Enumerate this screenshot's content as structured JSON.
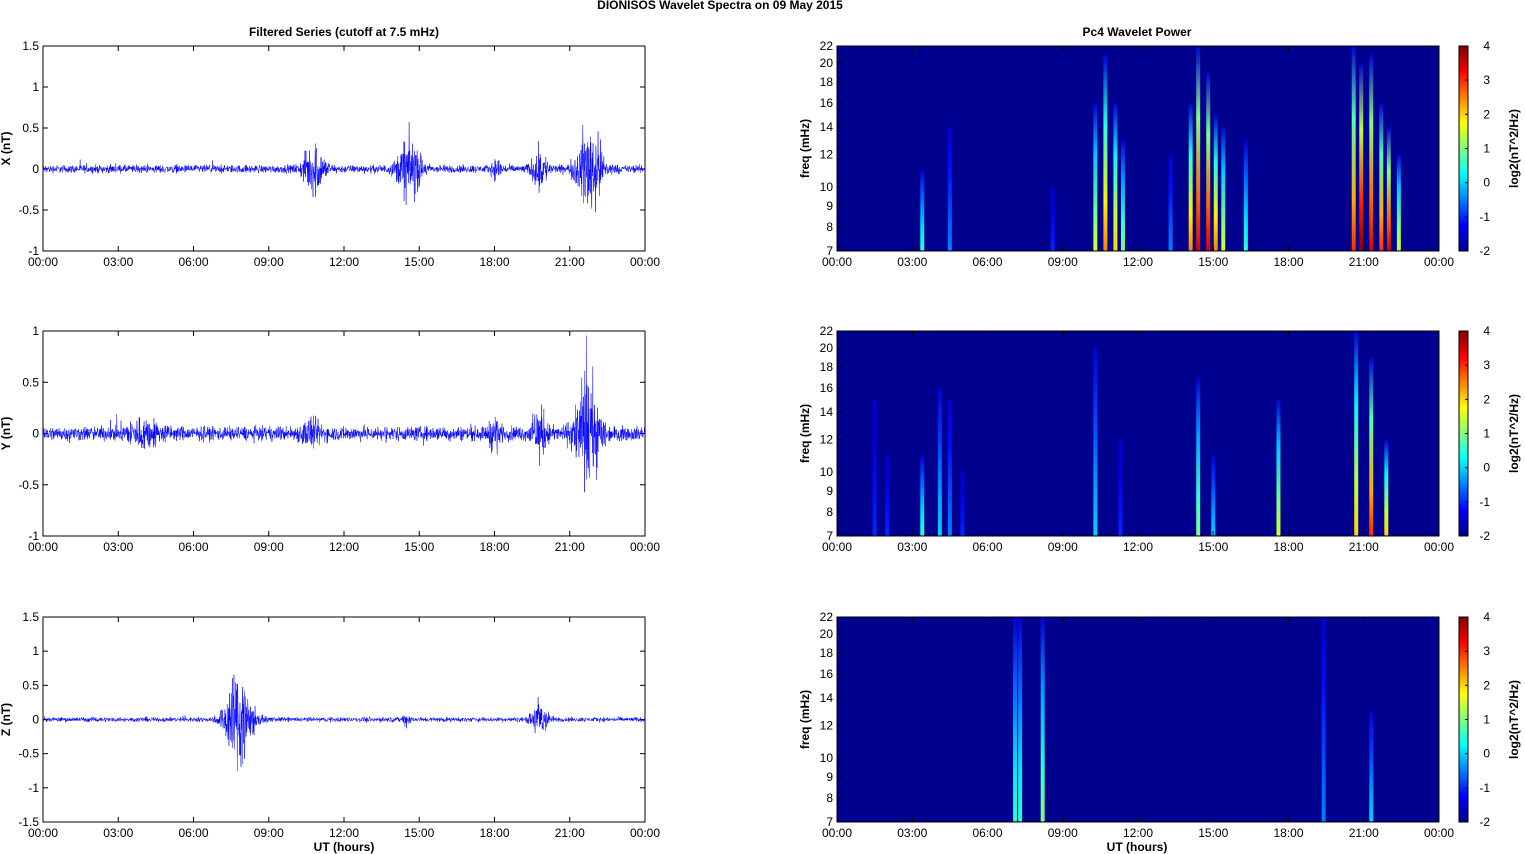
{
  "figure": {
    "title": "DIONISOS Wavelet Spectra on 09 May      2015",
    "left_column_title": "Filtered Series (cutoff at 7.5 mHz)",
    "right_column_title": "Pc4 Wavelet Power",
    "xlabel": "UT (hours)"
  },
  "colors": {
    "series_line": "#0000ff",
    "spectrogram_background": "#00008f",
    "colormap": "jet"
  },
  "time_ticks": [
    "00:00",
    "03:00",
    "06:00",
    "09:00",
    "12:00",
    "15:00",
    "18:00",
    "21:00",
    "00:00"
  ],
  "chart_data": [
    {
      "type": "line",
      "title": "Filtered Series (cutoff at 7.5 mHz)",
      "xlabel": "",
      "ylabel": "X (nT)",
      "x_range_hours": [
        0,
        24
      ],
      "ylim": [
        -1,
        1.5
      ],
      "yticks": [
        "1.5",
        "1",
        "0.5",
        "0",
        "-0.5",
        "-1"
      ],
      "yticks_values": [
        1.5,
        1,
        0.5,
        0,
        -0.5,
        -1
      ],
      "xticks": [
        "00:00",
        "03:00",
        "06:00",
        "09:00",
        "12:00",
        "15:00",
        "18:00",
        "21:00",
        "00:00"
      ],
      "baseline_noise_amplitude": 0.07,
      "bursts": [
        {
          "center_hour": 10.8,
          "width_hours": 0.8,
          "amplitude": 0.45
        },
        {
          "center_hour": 14.6,
          "width_hours": 0.9,
          "amplitude": 0.55
        },
        {
          "center_hour": 18.1,
          "width_hours": 0.4,
          "amplitude": 0.15
        },
        {
          "center_hour": 19.8,
          "width_hours": 0.6,
          "amplitude": 0.35
        },
        {
          "center_hour": 21.8,
          "width_hours": 1.0,
          "amplitude": 0.8
        }
      ]
    },
    {
      "type": "line",
      "title": "",
      "xlabel": "",
      "ylabel": "Y (nT)",
      "x_range_hours": [
        0,
        24
      ],
      "ylim": [
        -1,
        1
      ],
      "yticks": [
        "1",
        "0.5",
        "0",
        "-0.5",
        "-1"
      ],
      "yticks_values": [
        1,
        0.5,
        0,
        -0.5,
        -1
      ],
      "xticks": [
        "00:00",
        "03:00",
        "06:00",
        "09:00",
        "12:00",
        "15:00",
        "18:00",
        "21:00",
        "00:00"
      ],
      "baseline_noise_amplitude": 0.1,
      "bursts": [
        {
          "center_hour": 4.0,
          "width_hours": 1.5,
          "amplitude": 0.15
        },
        {
          "center_hour": 10.7,
          "width_hours": 0.8,
          "amplitude": 0.15
        },
        {
          "center_hour": 18.0,
          "width_hours": 0.4,
          "amplitude": 0.22
        },
        {
          "center_hour": 19.8,
          "width_hours": 0.6,
          "amplitude": 0.3
        },
        {
          "center_hour": 21.7,
          "width_hours": 1.0,
          "amplitude": 0.75
        }
      ]
    },
    {
      "type": "line",
      "title": "",
      "xlabel": "UT (hours)",
      "ylabel": "Z (nT)",
      "x_range_hours": [
        0,
        24
      ],
      "ylim": [
        -1.5,
        1.5
      ],
      "yticks": [
        "1.5",
        "1",
        "0.5",
        "0",
        "-0.5",
        "-1",
        "-1.5"
      ],
      "yticks_values": [
        1.5,
        1,
        0.5,
        0,
        -0.5,
        -1,
        -1.5
      ],
      "xticks": [
        "00:00",
        "03:00",
        "06:00",
        "09:00",
        "12:00",
        "15:00",
        "18:00",
        "21:00",
        "00:00"
      ],
      "baseline_noise_amplitude": 0.05,
      "bursts": [
        {
          "center_hour": 7.8,
          "width_hours": 1.0,
          "amplitude": 1.2
        },
        {
          "center_hour": 19.8,
          "width_hours": 0.6,
          "amplitude": 0.45
        },
        {
          "center_hour": 14.5,
          "width_hours": 0.3,
          "amplitude": 0.12
        }
      ]
    },
    {
      "type": "heatmap",
      "title": "Pc4 Wavelet Power",
      "xlabel": "",
      "ylabel": "freq (mHz)",
      "colorbar_label": "log2(nT^2/Hz)",
      "colorbar_range": [
        -2,
        4
      ],
      "colorbar_ticks": [
        "4",
        "3",
        "2",
        "1",
        "0",
        "-1",
        "-2"
      ],
      "x_range_hours": [
        0,
        24
      ],
      "freq_range_mHz": [
        7,
        22
      ],
      "freq_scale": "log",
      "yticks": [
        "22",
        "20",
        "18",
        "16",
        "14",
        "12",
        "10",
        "9",
        "8",
        "7"
      ],
      "yticks_values": [
        22,
        20,
        18,
        16,
        14,
        12,
        10,
        9,
        8,
        7
      ],
      "xticks": [
        "00:00",
        "03:00",
        "06:00",
        "09:00",
        "12:00",
        "15:00",
        "18:00",
        "21:00",
        "00:00"
      ],
      "streaks": [
        {
          "hour": 3.4,
          "top_mHz": 11,
          "peak": 0.5
        },
        {
          "hour": 4.5,
          "top_mHz": 14,
          "peak": -0.5
        },
        {
          "hour": 8.6,
          "top_mHz": 10,
          "peak": -1
        },
        {
          "hour": 10.3,
          "top_mHz": 16,
          "peak": 1.5
        },
        {
          "hour": 10.7,
          "top_mHz": 21,
          "peak": 2.5
        },
        {
          "hour": 11.1,
          "top_mHz": 16,
          "peak": 2
        },
        {
          "hour": 11.4,
          "top_mHz": 13,
          "peak": 1
        },
        {
          "hour": 13.3,
          "top_mHz": 12,
          "peak": -0.5
        },
        {
          "hour": 14.1,
          "top_mHz": 16,
          "peak": 2.5
        },
        {
          "hour": 14.4,
          "top_mHz": 22,
          "peak": 3.5
        },
        {
          "hour": 14.8,
          "top_mHz": 19,
          "peak": 3.5
        },
        {
          "hour": 15.1,
          "top_mHz": 15,
          "peak": 2.5
        },
        {
          "hour": 15.4,
          "top_mHz": 14,
          "peak": 1.5
        },
        {
          "hour": 16.3,
          "top_mHz": 13,
          "peak": 0.5
        },
        {
          "hour": 20.6,
          "top_mHz": 22,
          "peak": 3
        },
        {
          "hour": 20.9,
          "top_mHz": 20,
          "peak": 4
        },
        {
          "hour": 21.3,
          "top_mHz": 21,
          "peak": 3.5
        },
        {
          "hour": 21.7,
          "top_mHz": 16,
          "peak": 3
        },
        {
          "hour": 22.0,
          "top_mHz": 14,
          "peak": 3.5
        },
        {
          "hour": 22.4,
          "top_mHz": 12,
          "peak": 1.5
        }
      ]
    },
    {
      "type": "heatmap",
      "title": "",
      "xlabel": "",
      "ylabel": "freq (mHz)",
      "colorbar_label": "log2(nT^2/Hz)",
      "colorbar_range": [
        -2,
        4
      ],
      "colorbar_ticks": [
        "4",
        "3",
        "2",
        "1",
        "0",
        "-1",
        "-2"
      ],
      "x_range_hours": [
        0,
        24
      ],
      "freq_range_mHz": [
        7,
        22
      ],
      "freq_scale": "log",
      "yticks": [
        "22",
        "20",
        "18",
        "16",
        "14",
        "12",
        "10",
        "9",
        "8",
        "7"
      ],
      "yticks_values": [
        22,
        20,
        18,
        16,
        14,
        12,
        10,
        9,
        8,
        7
      ],
      "xticks": [
        "00:00",
        "03:00",
        "06:00",
        "09:00",
        "12:00",
        "15:00",
        "18:00",
        "21:00",
        "00:00"
      ],
      "streaks": [
        {
          "hour": 1.5,
          "top_mHz": 15,
          "peak": -1
        },
        {
          "hour": 2.0,
          "top_mHz": 11,
          "peak": -1
        },
        {
          "hour": 3.4,
          "top_mHz": 11,
          "peak": 0.5
        },
        {
          "hour": 4.1,
          "top_mHz": 16,
          "peak": 0
        },
        {
          "hour": 4.5,
          "top_mHz": 15,
          "peak": -0.5
        },
        {
          "hour": 5.0,
          "top_mHz": 10,
          "peak": -1
        },
        {
          "hour": 10.3,
          "top_mHz": 20,
          "peak": 0
        },
        {
          "hour": 11.3,
          "top_mHz": 12,
          "peak": -1
        },
        {
          "hour": 14.4,
          "top_mHz": 17,
          "peak": 1
        },
        {
          "hour": 15.0,
          "top_mHz": 11,
          "peak": 0
        },
        {
          "hour": 17.6,
          "top_mHz": 15,
          "peak": 1.5
        },
        {
          "hour": 20.7,
          "top_mHz": 22,
          "peak": 2
        },
        {
          "hour": 21.3,
          "top_mHz": 19,
          "peak": 3
        },
        {
          "hour": 21.9,
          "top_mHz": 12,
          "peak": 2
        }
      ]
    },
    {
      "type": "heatmap",
      "title": "",
      "xlabel": "UT (hours)",
      "ylabel": "freq (mHz)",
      "colorbar_label": "log2(nT^2/Hz)",
      "colorbar_range": [
        -2,
        4
      ],
      "colorbar_ticks": [
        "4",
        "3",
        "2",
        "1",
        "0",
        "-1",
        "-2"
      ],
      "x_range_hours": [
        0,
        24
      ],
      "freq_range_mHz": [
        7,
        22
      ],
      "freq_scale": "log",
      "yticks": [
        "22",
        "20",
        "18",
        "16",
        "14",
        "12",
        "10",
        "9",
        "8",
        "7"
      ],
      "yticks_values": [
        22,
        20,
        18,
        16,
        14,
        12,
        10,
        9,
        8,
        7
      ],
      "xticks": [
        "00:00",
        "03:00",
        "06:00",
        "09:00",
        "12:00",
        "15:00",
        "18:00",
        "21:00",
        "00:00"
      ],
      "streaks": [
        {
          "hour": 7.1,
          "top_mHz": 22,
          "peak": 0.5
        },
        {
          "hour": 7.3,
          "top_mHz": 22,
          "peak": 0.5
        },
        {
          "hour": 8.2,
          "top_mHz": 22,
          "peak": 1
        },
        {
          "hour": 19.4,
          "top_mHz": 22,
          "peak": -0.5
        },
        {
          "hour": 21.3,
          "top_mHz": 13,
          "peak": 0
        }
      ]
    }
  ]
}
